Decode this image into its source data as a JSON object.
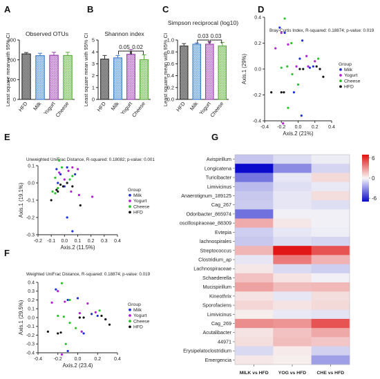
{
  "chart_data": [
    {
      "panel": "A",
      "type": "bar",
      "title": "Observed OTUs",
      "ylabel": "Least square mean with 95% CI",
      "categories": [
        "HFD",
        "Milk",
        "Yogurt",
        "Cheese"
      ],
      "values": [
        230,
        221,
        223,
        222
      ],
      "errors": [
        7,
        12,
        15,
        16
      ],
      "ylim": [
        0,
        300
      ],
      "yticks": [
        "0",
        "100",
        "200",
        "300"
      ]
    },
    {
      "panel": "B",
      "type": "bar",
      "title": "Shannon index",
      "ylabel": "Least square mean with 95% CI",
      "categories": [
        "HFD",
        "Milk",
        "Yogurt",
        "Cheese"
      ],
      "values": [
        3.4,
        3.5,
        3.8,
        3.35
      ],
      "errors": [
        0.3,
        0.2,
        0.4,
        0.4
      ],
      "ylim": [
        0,
        5
      ],
      "yticks": [
        "0",
        "1",
        "2",
        "3",
        "4",
        "5"
      ],
      "annotations": [
        {
          "from": "Milk",
          "to": "Yogurt",
          "label": "0.05"
        },
        {
          "from": "Yogurt",
          "to": "Cheese",
          "label": "0.02"
        }
      ]
    },
    {
      "panel": "C",
      "type": "bar",
      "title": "Simpson reciprocal (log10)",
      "ylabel": "Least square mean with 95% CI",
      "categories": [
        "HFD",
        "Milk",
        "Yogurt",
        "Cheese"
      ],
      "values": [
        0.9,
        0.93,
        0.93,
        0.9
      ],
      "errors": [
        0.04,
        0.02,
        0.04,
        0.06
      ],
      "ylim": [
        0,
        1.0
      ],
      "yticks": [
        "0.0",
        "0.2",
        "0.4",
        "0.6",
        "0.8",
        "1.0"
      ],
      "annotations": [
        {
          "from": "Milk",
          "to": "Yogurt",
          "label": "0.03"
        },
        {
          "from": "Yogurt",
          "to": "Cheese",
          "label": "0.03"
        }
      ]
    },
    {
      "panel": "D",
      "type": "scatter",
      "title": "Bray-Curtis Index, R-squared: 0.18874; p-value: 0.019",
      "xlabel": "Axis.2 (21%)",
      "ylabel": "Axis.1 (29%)",
      "xlim": [
        -0.4,
        0.4
      ],
      "ylim": [
        -0.4,
        0.4
      ],
      "xticks": [
        "-0.4",
        "-0.2",
        "0.0",
        "0.2",
        "0.4"
      ],
      "yticks": [
        "-0.4",
        "-0.2",
        "0.0",
        "0.2",
        "0.4"
      ],
      "legend_title": "Group",
      "series": [
        {
          "name": "Milk",
          "color": "#1f2fd6",
          "points": [
            [
              -0.22,
              0.32
            ],
            [
              -0.16,
              0.28
            ],
            [
              0.05,
              0.22
            ],
            [
              0.02,
              0.08
            ],
            [
              0.18,
              0.02
            ],
            [
              -0.05,
              -0.18
            ],
            [
              0.04,
              -0.36
            ],
            [
              0.14,
              0.01
            ]
          ]
        },
        {
          "name": "Yogurt",
          "color": "#b21fd6",
          "points": [
            [
              -0.2,
              0.28
            ],
            [
              -0.27,
              0.16
            ],
            [
              -0.12,
              0.19
            ],
            [
              0.1,
              0.1
            ],
            [
              0.2,
              0.06
            ],
            [
              -0.02,
              0.02
            ],
            [
              -0.18,
              -0.42
            ],
            [
              0.12,
              0.02
            ]
          ]
        },
        {
          "name": "Cheese",
          "color": "#2cc42c",
          "points": [
            [
              -0.16,
              0.39
            ],
            [
              -0.08,
              0.2
            ],
            [
              -0.13,
              0.02
            ],
            [
              -0.07,
              -0.04
            ],
            [
              0.0,
              -0.12
            ],
            [
              -0.12,
              -0.3
            ],
            [
              0.24,
              0.08
            ],
            [
              -0.2,
              0.01
            ]
          ]
        },
        {
          "name": "HFD",
          "color": "#111111",
          "points": [
            [
              -0.32,
              -0.18
            ],
            [
              -0.2,
              -0.18
            ],
            [
              -0.17,
              -0.18
            ],
            [
              0.02,
              0.0
            ],
            [
              0.06,
              0.0
            ],
            [
              0.22,
              0.02
            ],
            [
              0.26,
              0.0
            ],
            [
              0.3,
              -0.06
            ]
          ]
        }
      ]
    },
    {
      "panel": "E",
      "type": "scatter",
      "title": "Unweighted UniFrac Distance, R-squared: 0.18082; p-value: 0.001",
      "xlabel": "Axis.2 (11.5%)",
      "ylabel": "Axis.1 (19.1%)",
      "xlim": [
        -0.2,
        0.4
      ],
      "ylim": [
        -0.3,
        0.1
      ],
      "xticks": [
        "-0.2",
        "-0.1",
        "0.0",
        "0.1",
        "0.2",
        "0.3",
        "0.4"
      ],
      "yticks": [
        "-0.3",
        "-0.2",
        "-0.1",
        "0.0",
        "0.1"
      ],
      "legend_title": "Group",
      "series": [
        {
          "name": "Milk",
          "color": "#1f2fd6",
          "points": [
            [
              -0.06,
              0.08
            ],
            [
              -0.03,
              0.05
            ],
            [
              0.02,
              0.09
            ],
            [
              0.08,
              0.05
            ],
            [
              -0.05,
              0.0
            ],
            [
              0.0,
              -0.02
            ],
            [
              0.02,
              -0.2
            ],
            [
              0.06,
              -0.28
            ]
          ]
        },
        {
          "name": "Yogurt",
          "color": "#b21fd6",
          "points": [
            [
              -0.04,
              0.06
            ],
            [
              0.03,
              0.07
            ],
            [
              0.06,
              0.09
            ],
            [
              0.1,
              0.08
            ],
            [
              0.0,
              0.02
            ],
            [
              0.05,
              -0.05
            ],
            [
              0.11,
              -0.07
            ],
            [
              0.21,
              -0.08
            ]
          ]
        },
        {
          "name": "Cheese",
          "color": "#2cc42c",
          "points": [
            [
              -0.04,
              0.13
            ],
            [
              -0.02,
              0.09
            ],
            [
              -0.07,
              0.03
            ],
            [
              -0.05,
              -0.03
            ],
            [
              -0.07,
              -0.06
            ],
            [
              0.06,
              0.04
            ],
            [
              -0.09,
              -0.05
            ],
            [
              0.04,
              0.02
            ]
          ]
        },
        {
          "name": "HFD",
          "color": "#111111",
          "points": [
            [
              -0.1,
              -0.1
            ],
            [
              -0.05,
              -0.05
            ],
            [
              -0.03,
              -0.01
            ],
            [
              -0.01,
              -0.02
            ],
            [
              0.06,
              -0.02
            ],
            [
              0.12,
              -0.13
            ],
            [
              -0.06,
              -0.04
            ],
            [
              0.02,
              0.0
            ]
          ]
        }
      ]
    },
    {
      "panel": "F",
      "type": "scatter",
      "title": "Weighted UniFrac Distance, R-squared: 0.18874; p-value: 0.019",
      "xlabel": "Axis.2 (23.4)",
      "ylabel": "Axis.1 (29.5%)",
      "xlim": [
        -0.4,
        0.4
      ],
      "ylim": [
        -0.4,
        0.4
      ],
      "xticks": [
        "-0.4",
        "-0.2",
        "0.0",
        "0.2",
        "0.4"
      ],
      "yticks": [
        "-0.4",
        "-0.3",
        "-0.2",
        "-0.1",
        "0.0",
        "0.1",
        "0.2",
        "0.3",
        "0.4"
      ],
      "legend_title": "Group",
      "series": [
        {
          "name": "Milk",
          "color": "#1f2fd6",
          "points": [
            [
              -0.22,
              0.32
            ],
            [
              -0.1,
              0.2
            ],
            [
              0.0,
              0.22
            ],
            [
              0.14,
              0.04
            ],
            [
              0.2,
              0.02
            ],
            [
              0.06,
              -0.18
            ],
            [
              -0.1,
              -0.38
            ],
            [
              0.28,
              -0.02
            ]
          ]
        },
        {
          "name": "Yogurt",
          "color": "#b21fd6",
          "points": [
            [
              -0.2,
              0.3
            ],
            [
              -0.26,
              0.17
            ],
            [
              -0.13,
              0.18
            ],
            [
              0.1,
              0.16
            ],
            [
              0.18,
              0.06
            ],
            [
              0.02,
              0.05
            ],
            [
              -0.16,
              -0.42
            ],
            [
              0.04,
              -0.16
            ]
          ]
        },
        {
          "name": "Cheese",
          "color": "#2cc42c",
          "points": [
            [
              -0.16,
              0.39
            ],
            [
              -0.08,
              0.2
            ],
            [
              -0.14,
              0.01
            ],
            [
              -0.08,
              -0.06
            ],
            [
              -0.02,
              -0.12
            ],
            [
              -0.12,
              -0.3
            ],
            [
              0.22,
              0.08
            ],
            [
              -0.2,
              0.02
            ]
          ]
        },
        {
          "name": "HFD",
          "color": "#111111",
          "points": [
            [
              -0.3,
              -0.16
            ],
            [
              -0.2,
              -0.18
            ],
            [
              -0.17,
              -0.17
            ],
            [
              0.02,
              0.0
            ],
            [
              0.06,
              0.0
            ],
            [
              0.24,
              0.02
            ],
            [
              0.28,
              -0.02
            ],
            [
              0.32,
              -0.08
            ]
          ]
        }
      ]
    },
    {
      "panel": "G",
      "type": "heatmap",
      "columns": [
        "MILK vs HFD",
        "YOG vs HFD",
        "CHE vs HFD"
      ],
      "rows": [
        "Avispirillum",
        "Longicatena",
        "Turicibacter",
        "Limivicinus",
        "Anaerotignum_189125",
        "Cag_267",
        "Odoribacter_865974",
        "oscillospiraceae_88309",
        "Evtepia",
        "lachnospirales",
        "Streptococcus",
        "Clostridium_ap",
        "Lachnospiraceae",
        "Schaederella",
        "Mucispirillum",
        "Kineothrix",
        "Sporofaciens",
        "Limivicinus",
        "Cag_269",
        "Acutalibacter",
        "44971",
        "Erysipelatoclostridium",
        "Emergencia"
      ],
      "values": [
        [
          -1.5,
          -0.8,
          -0.3
        ],
        [
          -7.0,
          -3.2,
          -1.0
        ],
        [
          -3.8,
          -0.5,
          0.9
        ],
        [
          -1.8,
          -0.7,
          -0.4
        ],
        [
          -1.4,
          -0.5,
          0.8
        ],
        [
          -1.3,
          -0.5,
          -0.7
        ],
        [
          -4.0,
          -0.2,
          -0.2
        ],
        [
          2.3,
          0.5,
          -0.2
        ],
        [
          -1.2,
          -0.5,
          -0.3
        ],
        [
          -1.4,
          -0.8,
          -1.0
        ],
        [
          2.0,
          6.8,
          5.0
        ],
        [
          -0.5,
          3.8,
          2.1
        ],
        [
          0.5,
          -0.9,
          -1.2
        ],
        [
          1.6,
          0.6,
          -0.2
        ],
        [
          2.6,
          1.8,
          1.9
        ],
        [
          0.6,
          -0.5,
          0.8
        ],
        [
          1.0,
          0.6,
          0.9
        ],
        [
          0.3,
          -0.4,
          -0.6
        ],
        [
          3.2,
          3.0,
          5.0
        ],
        [
          0.6,
          1.6,
          2.4
        ],
        [
          0.8,
          1.8,
          1.5
        ],
        [
          -0.9,
          0.4,
          -1.1
        ],
        [
          0.5,
          0.3,
          -2.6
        ]
      ],
      "colorbar_ticks": [
        "6",
        "0",
        "-6"
      ],
      "vmin": -7,
      "vmax": 7,
      "color_low": "#0a0acc",
      "color_mid": "#f7f7f7",
      "color_high": "#e01010"
    }
  ],
  "panel_labels": [
    "A",
    "B",
    "C",
    "D",
    "E",
    "F",
    "G"
  ]
}
